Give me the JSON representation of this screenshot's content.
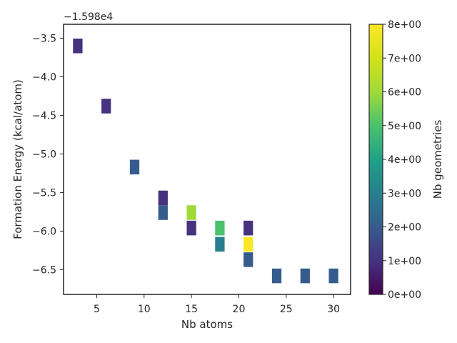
{
  "chart_data": {
    "type": "heatmap",
    "xlabel": "Nb atoms",
    "ylabel": "Formation Energy (kcal/atom)",
    "offset_text": "−1.598e4",
    "xlim": [
      1.5,
      31.8
    ],
    "ylim": [
      -6.82,
      -3.32
    ],
    "x_ticks": [
      5,
      10,
      15,
      20,
      25,
      30
    ],
    "x_tick_labels": [
      "5",
      "10",
      "15",
      "20",
      "25",
      "30"
    ],
    "y_ticks": [
      -3.5,
      -4.0,
      -4.5,
      -5.0,
      -5.5,
      -6.0,
      -6.5
    ],
    "y_tick_labels": [
      "−3.5",
      "−4.0",
      "−4.5",
      "−5.0",
      "−5.5",
      "−6.0",
      "−6.5"
    ],
    "bin_width_x": 1.0,
    "bin_height_y": 0.19,
    "cells": [
      {
        "x": 3,
        "y": -3.6,
        "count": 1
      },
      {
        "x": 6,
        "y": -4.38,
        "count": 1
      },
      {
        "x": 9,
        "y": -5.17,
        "count": 2
      },
      {
        "x": 12,
        "y": -5.57,
        "count": 1
      },
      {
        "x": 12,
        "y": -5.76,
        "count": 2
      },
      {
        "x": 15,
        "y": -5.76,
        "count": 6
      },
      {
        "x": 15,
        "y": -5.96,
        "count": 1
      },
      {
        "x": 18,
        "y": -5.96,
        "count": 5
      },
      {
        "x": 18,
        "y": -6.17,
        "count": 3
      },
      {
        "x": 21,
        "y": -5.96,
        "count": 1
      },
      {
        "x": 21,
        "y": -6.17,
        "count": 8
      },
      {
        "x": 21,
        "y": -6.37,
        "count": 2
      },
      {
        "x": 24,
        "y": -6.58,
        "count": 2
      },
      {
        "x": 27,
        "y": -6.58,
        "count": 2
      },
      {
        "x": 30,
        "y": -6.58,
        "count": 2
      }
    ],
    "colorbar": {
      "label": "Nb geometries",
      "min": 0,
      "max": 8,
      "colormap": "viridis",
      "ticks": [
        0,
        1,
        2,
        3,
        4,
        5,
        6,
        7,
        8
      ],
      "tick_labels": [
        "0e+00",
        "1e+00",
        "2e+00",
        "3e+00",
        "4e+00",
        "5e+00",
        "6e+00",
        "7e+00",
        "8e+00"
      ]
    },
    "grid": false,
    "axis_color": "#262626"
  }
}
